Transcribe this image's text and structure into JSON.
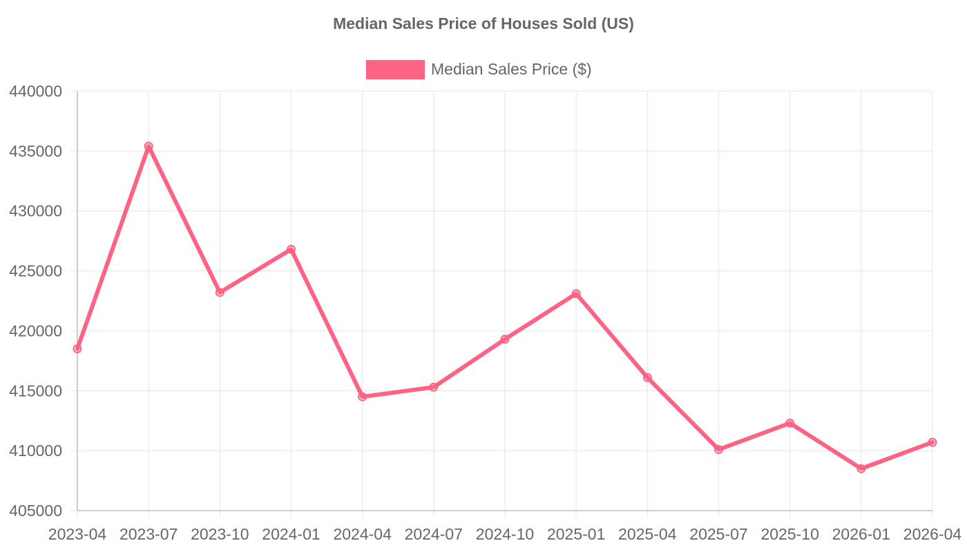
{
  "chart_data": {
    "type": "line",
    "title": "Median Sales Price of Houses Sold (US)",
    "xlabel": "",
    "ylabel": "",
    "x": [
      "2023-04",
      "2023-07",
      "2023-10",
      "2024-01",
      "2024-04",
      "2024-07",
      "2024-10",
      "2025-01",
      "2025-04",
      "2025-07",
      "2025-10",
      "2026-01",
      "2026-04"
    ],
    "series": [
      {
        "name": "Median Sales Price ($)",
        "color": "#ff6384",
        "values": [
          418500,
          435400,
          423200,
          426800,
          414500,
          415300,
          419300,
          423100,
          416100,
          410100,
          412300,
          408500,
          410700
        ]
      }
    ],
    "ylim": [
      405000,
      440000
    ],
    "y_ticks": [
      "440000",
      "435000",
      "430000",
      "425000",
      "420000",
      "415000",
      "410000",
      "405000"
    ],
    "grid": true,
    "legend": "top-center"
  }
}
